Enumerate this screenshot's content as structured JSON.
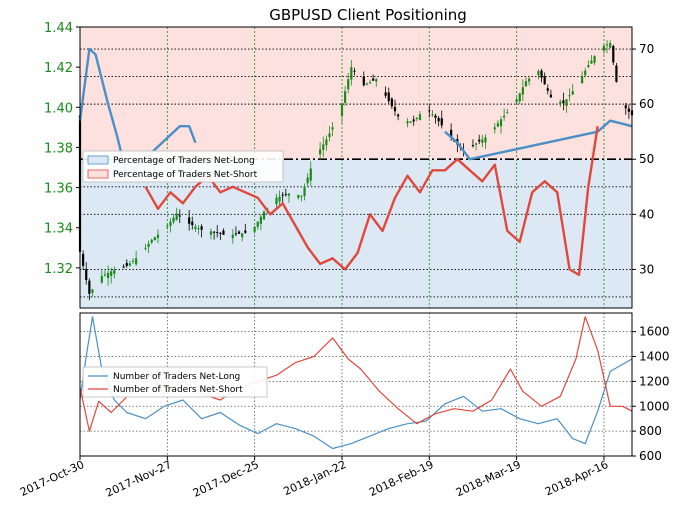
{
  "chart_data": [
    {
      "type": "candlestick-with-lines",
      "title": "GBPUSD Client Positioning",
      "x_start": "2017-10-30",
      "x_end": "2018-04-25",
      "x_ticks": [
        "2017-Oct-30",
        "2017-Nov-27",
        "2017-Dec-25",
        "2018-Jan-22",
        "2018-Feb-19",
        "2018-Mar-19",
        "2018-Apr-16"
      ],
      "y_left": {
        "min": 1.3,
        "max": 1.44,
        "ticks": [
          "1.32",
          "1.34",
          "1.36",
          "1.38",
          "1.40",
          "1.42",
          "1.44"
        ]
      },
      "y_right": {
        "min": 23,
        "max": 74,
        "ticks": [
          "30",
          "40",
          "50",
          "60",
          "70"
        ]
      },
      "legend": {
        "placement": "left",
        "entries": [
          "Percentage of Traders Net-Long",
          "Percentage of Traders Net-Short"
        ]
      },
      "colors": {
        "net_long": "#4a90c8",
        "net_short": "#e0483c",
        "candle_up": "#1a8a1a",
        "candle_down": "#000000",
        "net_long_fill": "#dce9f5",
        "net_short_fill": "#fde1df",
        "left_axis": "#1a8a1a"
      },
      "price_close": [
        {
          "date": "2017-10-30",
          "v": 1.328
        },
        {
          "date": "2017-11-02",
          "v": 1.307
        },
        {
          "date": "2017-11-06",
          "v": 1.316
        },
        {
          "date": "2017-11-10",
          "v": 1.319
        },
        {
          "date": "2017-11-14",
          "v": 1.321
        },
        {
          "date": "2017-11-18",
          "v": 1.326
        },
        {
          "date": "2017-11-22",
          "v": 1.334
        },
        {
          "date": "2017-11-26",
          "v": 1.339
        },
        {
          "date": "2017-11-30",
          "v": 1.347
        },
        {
          "date": "2017-12-04",
          "v": 1.342
        },
        {
          "date": "2017-12-08",
          "v": 1.339
        },
        {
          "date": "2017-12-12",
          "v": 1.338
        },
        {
          "date": "2017-12-16",
          "v": 1.336
        },
        {
          "date": "2017-12-20",
          "v": 1.337
        },
        {
          "date": "2017-12-24",
          "v": 1.338
        },
        {
          "date": "2017-12-28",
          "v": 1.348
        },
        {
          "date": "2018-01-01",
          "v": 1.355
        },
        {
          "date": "2018-01-05",
          "v": 1.357
        },
        {
          "date": "2018-01-09",
          "v": 1.356
        },
        {
          "date": "2018-01-13",
          "v": 1.374
        },
        {
          "date": "2018-01-17",
          "v": 1.384
        },
        {
          "date": "2018-01-21",
          "v": 1.396
        },
        {
          "date": "2018-01-25",
          "v": 1.42
        },
        {
          "date": "2018-01-29",
          "v": 1.411
        },
        {
          "date": "2018-02-02",
          "v": 1.414
        },
        {
          "date": "2018-02-06",
          "v": 1.403
        },
        {
          "date": "2018-02-10",
          "v": 1.393
        },
        {
          "date": "2018-02-14",
          "v": 1.393
        },
        {
          "date": "2018-02-18",
          "v": 1.4
        },
        {
          "date": "2018-02-22",
          "v": 1.393
        },
        {
          "date": "2018-02-26",
          "v": 1.385
        },
        {
          "date": "2018-03-02",
          "v": 1.378
        },
        {
          "date": "2018-03-06",
          "v": 1.382
        },
        {
          "date": "2018-03-10",
          "v": 1.386
        },
        {
          "date": "2018-03-14",
          "v": 1.394
        },
        {
          "date": "2018-03-18",
          "v": 1.401
        },
        {
          "date": "2018-03-22",
          "v": 1.413
        },
        {
          "date": "2018-03-26",
          "v": 1.418
        },
        {
          "date": "2018-03-30",
          "v": 1.405
        },
        {
          "date": "2018-04-03",
          "v": 1.402
        },
        {
          "date": "2018-04-07",
          "v": 1.41
        },
        {
          "date": "2018-04-11",
          "v": 1.421
        },
        {
          "date": "2018-04-15",
          "v": 1.43
        },
        {
          "date": "2018-04-18",
          "v": 1.432
        },
        {
          "date": "2018-04-21",
          "v": 1.403
        },
        {
          "date": "2018-04-25",
          "v": 1.396
        }
      ],
      "net_long_pct": [
        {
          "date": "2017-10-30",
          "v": 57
        },
        {
          "date": "2017-11-02",
          "v": 70
        },
        {
          "date": "2017-11-04",
          "v": 69
        },
        {
          "date": "2017-11-08",
          "v": 60
        },
        {
          "date": "2017-11-11",
          "v": 54
        },
        {
          "date": "2017-11-14",
          "v": 47
        },
        {
          "date": "2017-12-01",
          "v": 56
        },
        {
          "date": "2017-12-04",
          "v": 56
        },
        {
          "date": "2017-12-06",
          "v": 53
        }
      ],
      "net_long_pct_late": [
        {
          "date": "2018-02-24",
          "v": 55
        },
        {
          "date": "2018-02-28",
          "v": 53
        },
        {
          "date": "2018-03-04",
          "v": 50
        },
        {
          "date": "2018-04-14",
          "v": 55
        },
        {
          "date": "2018-04-18",
          "v": 57
        },
        {
          "date": "2018-04-25",
          "v": 56
        }
      ],
      "net_short_pct": [
        {
          "date": "2017-11-20",
          "v": 45
        },
        {
          "date": "2017-11-24",
          "v": 41
        },
        {
          "date": "2017-11-28",
          "v": 44
        },
        {
          "date": "2017-12-02",
          "v": 42
        },
        {
          "date": "2017-12-06",
          "v": 45
        },
        {
          "date": "2017-12-10",
          "v": 47
        },
        {
          "date": "2017-12-14",
          "v": 44
        },
        {
          "date": "2017-12-18",
          "v": 45
        },
        {
          "date": "2017-12-22",
          "v": 44
        },
        {
          "date": "2017-12-26",
          "v": 43
        },
        {
          "date": "2017-12-30",
          "v": 40
        },
        {
          "date": "2018-01-03",
          "v": 42
        },
        {
          "date": "2018-01-07",
          "v": 38
        },
        {
          "date": "2018-01-11",
          "v": 34
        },
        {
          "date": "2018-01-15",
          "v": 31
        },
        {
          "date": "2018-01-19",
          "v": 32
        },
        {
          "date": "2018-01-23",
          "v": 30
        },
        {
          "date": "2018-01-27",
          "v": 33
        },
        {
          "date": "2018-01-31",
          "v": 40
        },
        {
          "date": "2018-02-04",
          "v": 37
        },
        {
          "date": "2018-02-08",
          "v": 43
        },
        {
          "date": "2018-02-12",
          "v": 47
        },
        {
          "date": "2018-02-16",
          "v": 44
        },
        {
          "date": "2018-02-20",
          "v": 48
        },
        {
          "date": "2018-02-24",
          "v": 48
        },
        {
          "date": "2018-02-28",
          "v": 50
        },
        {
          "date": "2018-03-04",
          "v": 48
        },
        {
          "date": "2018-03-08",
          "v": 46
        },
        {
          "date": "2018-03-12",
          "v": 49
        },
        {
          "date": "2018-03-16",
          "v": 37
        },
        {
          "date": "2018-03-20",
          "v": 35
        },
        {
          "date": "2018-03-24",
          "v": 44
        },
        {
          "date": "2018-03-28",
          "v": 46
        },
        {
          "date": "2018-04-01",
          "v": 44
        },
        {
          "date": "2018-04-05",
          "v": 30
        },
        {
          "date": "2018-04-08",
          "v": 29
        },
        {
          "date": "2018-04-11",
          "v": 45
        },
        {
          "date": "2018-04-14",
          "v": 56
        }
      ]
    },
    {
      "type": "line",
      "x_start": "2017-10-30",
      "x_end": "2018-04-25",
      "y_right": {
        "min": 600,
        "max": 1750,
        "ticks": [
          "600",
          "800",
          "1000",
          "1200",
          "1400",
          "1600"
        ]
      },
      "legend": {
        "placement": "left",
        "entries": [
          "Number of Traders Net-Long",
          "Number of Traders Net-Short"
        ]
      },
      "series": [
        {
          "name": "Number of Traders Net-Long",
          "color": "#4a90c8",
          "points": [
            {
              "date": "2017-10-30",
              "v": 1050
            },
            {
              "date": "2017-11-01",
              "v": 1400
            },
            {
              "date": "2017-11-03",
              "v": 1720
            },
            {
              "date": "2017-11-06",
              "v": 1300
            },
            {
              "date": "2017-11-10",
              "v": 1050
            },
            {
              "date": "2017-11-14",
              "v": 950
            },
            {
              "date": "2017-11-20",
              "v": 900
            },
            {
              "date": "2017-11-26",
              "v": 1000
            },
            {
              "date": "2017-12-02",
              "v": 1050
            },
            {
              "date": "2017-12-08",
              "v": 900
            },
            {
              "date": "2017-12-14",
              "v": 950
            },
            {
              "date": "2017-12-20",
              "v": 850
            },
            {
              "date": "2017-12-26",
              "v": 780
            },
            {
              "date": "2018-01-01",
              "v": 860
            },
            {
              "date": "2018-01-07",
              "v": 820
            },
            {
              "date": "2018-01-13",
              "v": 760
            },
            {
              "date": "2018-01-19",
              "v": 660
            },
            {
              "date": "2018-01-25",
              "v": 700
            },
            {
              "date": "2018-01-31",
              "v": 760
            },
            {
              "date": "2018-02-06",
              "v": 820
            },
            {
              "date": "2018-02-12",
              "v": 860
            },
            {
              "date": "2018-02-18",
              "v": 880
            },
            {
              "date": "2018-02-24",
              "v": 1020
            },
            {
              "date": "2018-03-02",
              "v": 1080
            },
            {
              "date": "2018-03-08",
              "v": 960
            },
            {
              "date": "2018-03-14",
              "v": 980
            },
            {
              "date": "2018-03-20",
              "v": 900
            },
            {
              "date": "2018-03-26",
              "v": 860
            },
            {
              "date": "2018-04-01",
              "v": 900
            },
            {
              "date": "2018-04-06",
              "v": 740
            },
            {
              "date": "2018-04-10",
              "v": 700
            },
            {
              "date": "2018-04-14",
              "v": 960
            },
            {
              "date": "2018-04-18",
              "v": 1280
            },
            {
              "date": "2018-04-25",
              "v": 1380
            }
          ]
        },
        {
          "name": "Number of Traders Net-Short",
          "color": "#e0483c",
          "points": [
            {
              "date": "2017-10-30",
              "v": 1150
            },
            {
              "date": "2017-11-02",
              "v": 800
            },
            {
              "date": "2017-11-05",
              "v": 1040
            },
            {
              "date": "2017-11-09",
              "v": 950
            },
            {
              "date": "2017-11-15",
              "v": 1100
            },
            {
              "date": "2017-11-20",
              "v": 1300
            },
            {
              "date": "2017-11-26",
              "v": 1100
            },
            {
              "date": "2017-12-02",
              "v": 1200
            },
            {
              "date": "2017-12-08",
              "v": 1100
            },
            {
              "date": "2017-12-14",
              "v": 1050
            },
            {
              "date": "2017-12-20",
              "v": 1150
            },
            {
              "date": "2017-12-26",
              "v": 1200
            },
            {
              "date": "2018-01-01",
              "v": 1250
            },
            {
              "date": "2018-01-07",
              "v": 1350
            },
            {
              "date": "2018-01-13",
              "v": 1400
            },
            {
              "date": "2018-01-19",
              "v": 1550
            },
            {
              "date": "2018-01-24",
              "v": 1380
            },
            {
              "date": "2018-01-28",
              "v": 1300
            },
            {
              "date": "2018-02-03",
              "v": 1120
            },
            {
              "date": "2018-02-09",
              "v": 980
            },
            {
              "date": "2018-02-15",
              "v": 860
            },
            {
              "date": "2018-02-21",
              "v": 940
            },
            {
              "date": "2018-02-27",
              "v": 980
            },
            {
              "date": "2018-03-05",
              "v": 960
            },
            {
              "date": "2018-03-11",
              "v": 1050
            },
            {
              "date": "2018-03-17",
              "v": 1300
            },
            {
              "date": "2018-03-21",
              "v": 1120
            },
            {
              "date": "2018-03-27",
              "v": 1000
            },
            {
              "date": "2018-04-02",
              "v": 1080
            },
            {
              "date": "2018-04-07",
              "v": 1380
            },
            {
              "date": "2018-04-10",
              "v": 1720
            },
            {
              "date": "2018-04-14",
              "v": 1450
            },
            {
              "date": "2018-04-18",
              "v": 1000
            },
            {
              "date": "2018-04-22",
              "v": 1000
            },
            {
              "date": "2018-04-25",
              "v": 960
            }
          ]
        }
      ]
    }
  ]
}
